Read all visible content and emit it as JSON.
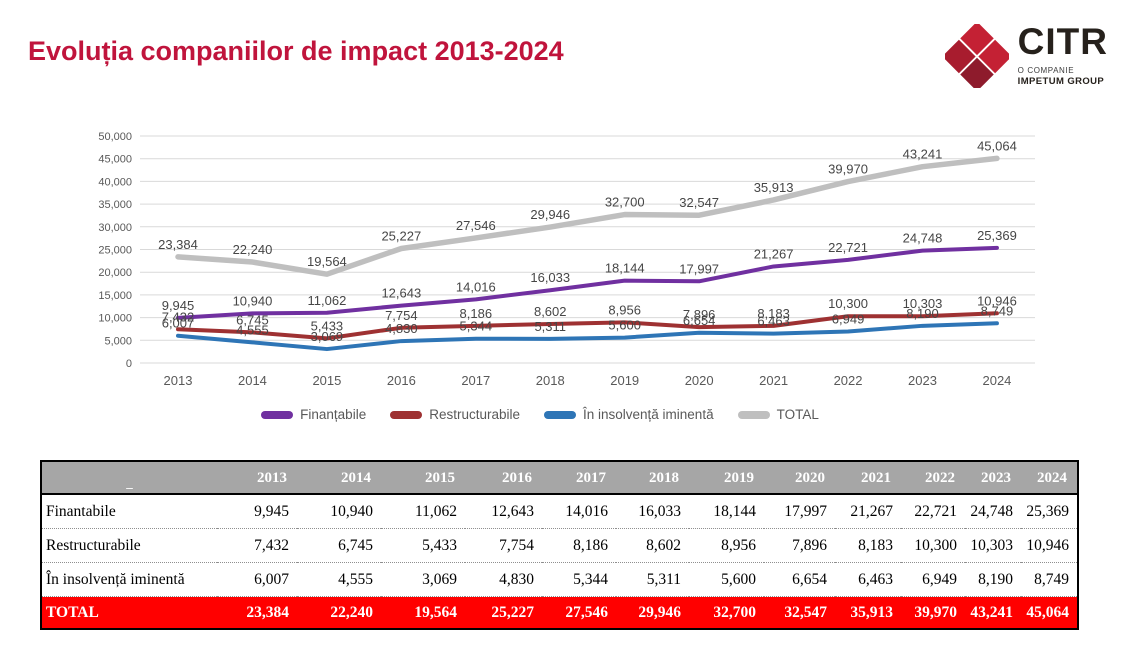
{
  "title": "Evoluția companiilor de impact 2013-2024",
  "logo": {
    "wordmark": "CITR",
    "subtitle": "O COMPANIE",
    "group": "IMPETUM GROUP",
    "diamond_colors": [
      "#C42134",
      "#C42134",
      "#A81C2E",
      "#8E1B2C"
    ]
  },
  "colors": {
    "title_accent": "#C0143C",
    "table_header_bg": "#A6A6A6",
    "total_row_bg": "#FF0000",
    "gridline": "#D9D9D9",
    "axis_text": "#595959"
  },
  "chart_data": {
    "type": "line",
    "x": [
      "2013",
      "2014",
      "2015",
      "2016",
      "2017",
      "2018",
      "2019",
      "2020",
      "2021",
      "2022",
      "2023",
      "2024"
    ],
    "series": [
      {
        "name": "Finanțabile",
        "color": "#7030A0",
        "values": [
          9945,
          10940,
          11062,
          12643,
          14016,
          16033,
          18144,
          17997,
          21267,
          22721,
          24748,
          25369
        ]
      },
      {
        "name": "Restructurabile",
        "color": "#9E3132",
        "values": [
          7432,
          6745,
          5433,
          7754,
          8186,
          8602,
          8956,
          7896,
          8183,
          10300,
          10303,
          10946
        ]
      },
      {
        "name": "În insolvență iminentă",
        "color": "#2E75B6",
        "values": [
          6007,
          4555,
          3069,
          4830,
          5344,
          5311,
          5600,
          6654,
          6463,
          6949,
          8190,
          8749
        ]
      },
      {
        "name": "TOTAL",
        "color": "#BFBFBF",
        "values": [
          23384,
          22240,
          19564,
          25227,
          27546,
          29946,
          32700,
          32547,
          35913,
          39970,
          43241,
          45064
        ]
      }
    ],
    "ylim": [
      0,
      50000
    ],
    "ytick_step": 5000,
    "grid": true,
    "data_labels": true,
    "legend_position": "bottom"
  },
  "table": {
    "corner_label": "_",
    "years": [
      "2013",
      "2014",
      "2015",
      "2016",
      "2017",
      "2018",
      "2019",
      "2020",
      "2021",
      "2022",
      "2023",
      "2024"
    ],
    "rows": [
      {
        "label": "Finantabile",
        "values": [
          9945,
          10940,
          11062,
          12643,
          14016,
          16033,
          18144,
          17997,
          21267,
          22721,
          24748,
          25369
        ]
      },
      {
        "label": "Restructurabile",
        "values": [
          7432,
          6745,
          5433,
          7754,
          8186,
          8602,
          8956,
          7896,
          8183,
          10300,
          10303,
          10946
        ]
      },
      {
        "label": "În insolvență iminentă",
        "values": [
          6007,
          4555,
          3069,
          4830,
          5344,
          5311,
          5600,
          6654,
          6463,
          6949,
          8190,
          8749
        ]
      }
    ],
    "total_row": {
      "label": "TOTAL",
      "values": [
        23384,
        22240,
        19564,
        25227,
        27546,
        29946,
        32700,
        32547,
        35913,
        39970,
        43241,
        45064
      ]
    }
  }
}
